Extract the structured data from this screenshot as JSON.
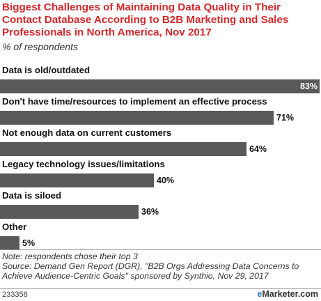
{
  "title": "Biggest Challenges of Maintaining Data Quality in Their Contact Database According to B2B Marketing and Sales Professionals in North America, Nov 2017",
  "subtitle": "% of respondents",
  "chart_data": {
    "type": "bar",
    "orientation": "horizontal",
    "title": "Biggest Challenges of Maintaining Data Quality in Their Contact Database According to B2B Marketing and Sales Professionals in North America, Nov 2017",
    "subtitle": "% of respondents",
    "categories": [
      "Data is old/outdated",
      "Don't have time/resources to implement an effective process",
      "Not enough data on current customers",
      "Legacy technology issues/limitations",
      "Data is siloed",
      "Other"
    ],
    "values": [
      83,
      71,
      64,
      40,
      36,
      5
    ],
    "value_labels": [
      "83%",
      "71%",
      "64%",
      "40%",
      "36%",
      "5%"
    ],
    "xlim": [
      0,
      83
    ],
    "grid": false,
    "bar_color": "#595959"
  },
  "notes": {
    "line1": "Note: respondents chose their top 3",
    "line2": "Source: Demand Gen Report (DGR), \"B2B Orgs Addressing Data Concerns to Achieve Audience-Centric Goals\" sponsored by Synthio, Nov 29, 2017"
  },
  "footer": {
    "id": "233358",
    "brand_prefix": "e",
    "brand_name": "Marketer",
    "brand_suffix": ".com"
  },
  "colors": {
    "title": "#d4282a",
    "bar": "#595959",
    "brand_accent": "#2b7bbf"
  }
}
